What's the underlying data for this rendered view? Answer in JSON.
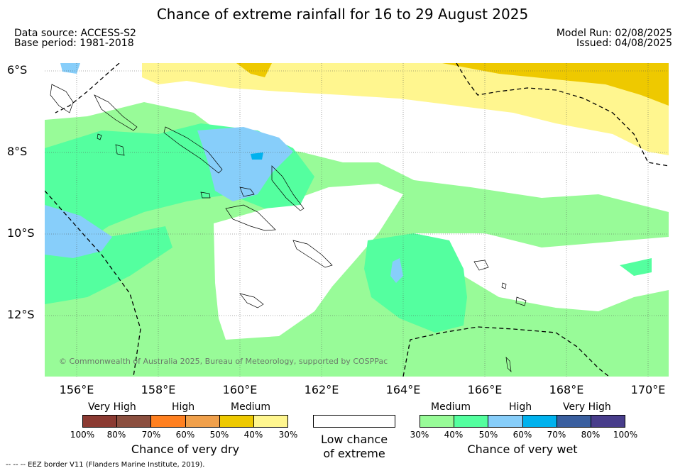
{
  "title": "Chance of extreme rainfall for 16 to 29 August 2025",
  "data_source": "Data source: ACCESS-S2",
  "base_period": "Base period: 1981-2018",
  "model_run": "Model Run: 02/08/2025",
  "issued": "Issued: 04/08/2025",
  "lat_labels": [
    "6°S",
    "8°S",
    "10°S",
    "12°S"
  ],
  "lon_labels": [
    "156°E",
    "158°E",
    "160°E",
    "162°E",
    "164°E",
    "166°E",
    "168°E",
    "170°E"
  ],
  "copyright": "© Commonwealth of Australia 2025, Bureau of Meteorology, supported by COSPPac",
  "legend": {
    "dry": {
      "categories": [
        "Very High",
        "High",
        "Medium"
      ],
      "ticks": [
        "100%",
        "80%",
        "70%",
        "60%",
        "50%",
        "40%",
        "30%"
      ],
      "colors": [
        "#8b3a32",
        "#8b4f3f",
        "#ff8020",
        "#f0a04b",
        "#eec900",
        "#fff68f"
      ],
      "caption": "Chance of very dry"
    },
    "low": {
      "caption_line1": "Low chance",
      "caption_line2": "of extreme",
      "color": "#ffffff"
    },
    "wet": {
      "categories": [
        "Medium",
        "High",
        "Very High"
      ],
      "ticks": [
        "30%",
        "40%",
        "50%",
        "60%",
        "70%",
        "80%",
        "100%"
      ],
      "colors": [
        "#98fb98",
        "#54ff9f",
        "#87cefa",
        "#00b2ee",
        "#3a5f9f",
        "#483d8b"
      ],
      "caption": "Chance of very wet"
    }
  },
  "footer": "-- -- -- EEZ border V11 (Flanders Marine Institute, 2019)."
}
